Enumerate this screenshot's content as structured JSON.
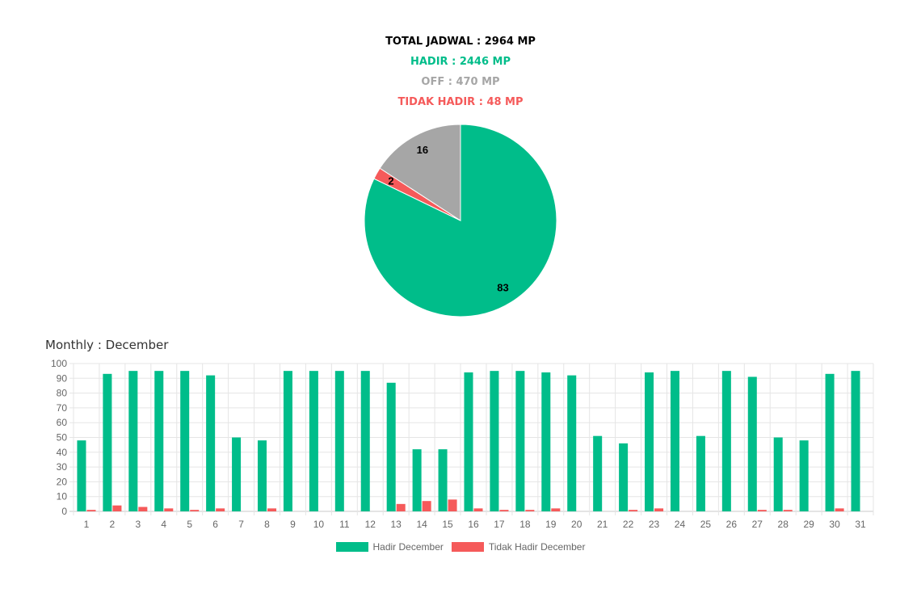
{
  "summary": {
    "total": "TOTAL JADWAL : 2964 MP",
    "hadir": "HADIR : 2446 MP",
    "off": "OFF : 470 MP",
    "tidak_hadir": "TIDAK HADIR : 48 MP"
  },
  "colors": {
    "hadir": "#00bd8a",
    "off": "#a6a6a6",
    "tidak_hadir": "#f55a5a",
    "grid": "#e5e5e5",
    "tick": "#666666"
  },
  "monthly_title": "Monthly : December",
  "chart_data": [
    {
      "type": "pie",
      "slices": [
        {
          "key": "hadir",
          "value": 83,
          "label": "83"
        },
        {
          "key": "tidak_hadir",
          "value": 2,
          "label": "2"
        },
        {
          "key": "off",
          "value": 16,
          "label": "16"
        }
      ]
    },
    {
      "type": "bar",
      "title": "Monthly : December",
      "categories": [
        "1",
        "2",
        "3",
        "4",
        "5",
        "6",
        "7",
        "8",
        "9",
        "10",
        "11",
        "12",
        "13",
        "14",
        "15",
        "16",
        "17",
        "18",
        "19",
        "20",
        "21",
        "22",
        "23",
        "24",
        "25",
        "26",
        "27",
        "28",
        "29",
        "30",
        "31"
      ],
      "series": [
        {
          "name": "Hadir December",
          "color": "#00bd8a",
          "values": [
            48,
            93,
            95,
            95,
            95,
            92,
            50,
            48,
            95,
            95,
            95,
            95,
            87,
            42,
            42,
            94,
            95,
            95,
            94,
            92,
            51,
            46,
            94,
            95,
            51,
            95,
            91,
            50,
            48,
            93,
            95
          ]
        },
        {
          "name": "Tidak Hadir December",
          "color": "#f55a5a",
          "values": [
            1,
            4,
            3,
            2,
            1,
            2,
            0,
            2,
            0,
            0,
            0,
            0,
            5,
            7,
            8,
            2,
            1,
            1,
            2,
            0,
            0,
            1,
            2,
            0,
            0,
            0,
            1,
            1,
            0,
            2,
            0
          ]
        }
      ],
      "ylim": [
        0,
        100
      ],
      "yticks": [
        0,
        10,
        20,
        30,
        40,
        50,
        60,
        70,
        80,
        90,
        100
      ],
      "grid": true,
      "legend_position": "bottom"
    }
  ]
}
